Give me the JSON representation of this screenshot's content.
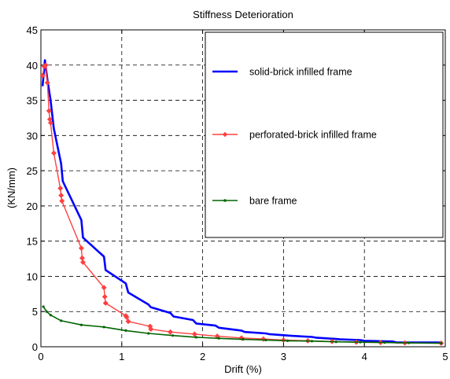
{
  "chart_data": {
    "type": "line",
    "title": "Stiffness Deterioration",
    "xlabel": "Drift (%)",
    "ylabel": "(KN/mm)",
    "xlim": [
      0,
      5
    ],
    "ylim": [
      0,
      45
    ],
    "xticks": [
      0,
      1,
      2,
      3,
      4,
      5
    ],
    "yticks": [
      0,
      5,
      10,
      15,
      20,
      25,
      30,
      35,
      40,
      45
    ],
    "xtick_labels": [
      "0",
      "1",
      "2",
      "3",
      "4",
      "5"
    ],
    "ytick_labels": [
      "0",
      "5",
      "10",
      "15",
      "20",
      "25",
      "30",
      "35",
      "40",
      "45"
    ],
    "grid": true,
    "legend_position": "top-right",
    "series": [
      {
        "name": "solid-brick infilled frame",
        "color": "#0000ff",
        "marker": "none",
        "x": [
          0.02,
          0.05,
          0.08,
          0.12,
          0.16,
          0.25,
          0.27,
          0.5,
          0.52,
          0.78,
          0.8,
          1.05,
          1.08,
          1.33,
          1.36,
          1.6,
          1.64,
          1.88,
          1.92,
          2.16,
          2.2,
          2.48,
          2.52,
          2.78,
          2.82,
          3.05,
          3.1,
          3.35,
          3.4,
          3.65,
          3.7,
          3.95,
          4.0,
          4.35,
          4.4,
          4.95
        ],
        "y": [
          37.0,
          40.7,
          38.0,
          35.0,
          31.0,
          26.0,
          23.5,
          18.0,
          15.5,
          12.8,
          10.9,
          9.0,
          7.7,
          6.0,
          5.6,
          4.8,
          4.3,
          3.8,
          3.3,
          3.0,
          2.7,
          2.3,
          2.1,
          1.9,
          1.8,
          1.6,
          1.55,
          1.4,
          1.3,
          1.1,
          1.05,
          0.95,
          0.85,
          0.75,
          0.6,
          0.6
        ]
      },
      {
        "name": "perforated-brick infilled frame",
        "color": "#ff4040",
        "marker": "diamond",
        "x": [
          0.02,
          0.04,
          0.06,
          0.08,
          0.1,
          0.11,
          0.12,
          0.16,
          0.24,
          0.25,
          0.26,
          0.5,
          0.51,
          0.52,
          0.78,
          0.79,
          0.8,
          1.05,
          1.06,
          1.08,
          1.35,
          1.36,
          1.6,
          1.9,
          2.18,
          2.48,
          2.75,
          3.0,
          3.3,
          3.6,
          3.9,
          4.2,
          4.5,
          4.95
        ],
        "y": [
          38.5,
          39.8,
          40.0,
          37.5,
          33.5,
          32.3,
          31.8,
          27.5,
          22.5,
          21.5,
          20.7,
          14.0,
          12.6,
          12.0,
          8.4,
          7.1,
          6.2,
          4.4,
          4.2,
          3.6,
          2.9,
          2.5,
          2.1,
          1.8,
          1.5,
          1.25,
          1.1,
          0.95,
          0.85,
          0.75,
          0.65,
          0.6,
          0.55,
          0.5
        ]
      },
      {
        "name": "bare frame",
        "color": "#006400",
        "marker": "dot",
        "x": [
          0.03,
          0.07,
          0.12,
          0.25,
          0.5,
          0.78,
          1.05,
          1.33,
          1.63,
          1.92,
          2.2,
          2.5,
          2.78,
          3.05,
          3.35,
          3.65,
          3.95,
          4.25,
          4.55,
          4.95
        ],
        "y": [
          5.7,
          5.0,
          4.5,
          3.7,
          3.1,
          2.8,
          2.3,
          1.9,
          1.6,
          1.35,
          1.2,
          1.05,
          0.95,
          0.85,
          0.8,
          0.7,
          0.65,
          0.6,
          0.55,
          0.5
        ]
      }
    ]
  }
}
